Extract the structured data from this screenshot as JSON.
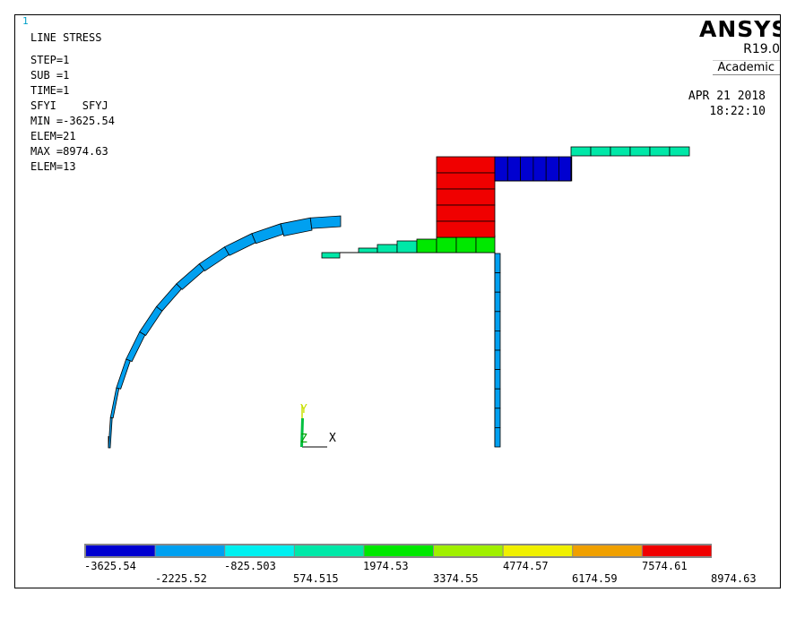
{
  "window_number": "1",
  "header_lines": {
    "title": "LINE STRESS",
    "step": "STEP=1",
    "sub": "SUB =1",
    "time": "TIME=1",
    "items": "SFYI    SFYJ",
    "min": "MIN =-3625.54",
    "min_elem": "ELEM=21",
    "max": "MAX =8974.63",
    "max_elem": "ELEM=13"
  },
  "brand": {
    "name": "ANSYS",
    "version": "R19.0",
    "edition": "Academic"
  },
  "date": "APR 21 2018",
  "time": "18:22:10",
  "triad": {
    "y_label": "Y",
    "z_label": "Z",
    "x_label": "X"
  },
  "colors": {
    "level1": "#0000d0",
    "level2": "#00a0f0",
    "level3": "#00f0f0",
    "level4": "#00e8a8",
    "level5": "#00e800",
    "level6": "#a0f000",
    "level7": "#f0f000",
    "level8": "#f0a000",
    "level9": "#f00000"
  },
  "colorbar": {
    "colors": [
      "#0000d0",
      "#00a0f0",
      "#00f0f0",
      "#00e8a8",
      "#00e800",
      "#a0f000",
      "#f0f000",
      "#f0a000",
      "#f00000"
    ],
    "top_labels": [
      "-3625.54",
      "-825.503",
      "1974.53",
      "4774.57",
      "7574.61"
    ],
    "bottom_labels": [
      "-2225.52",
      "574.515",
      "3374.55",
      "6174.59",
      "8974.63"
    ]
  }
}
